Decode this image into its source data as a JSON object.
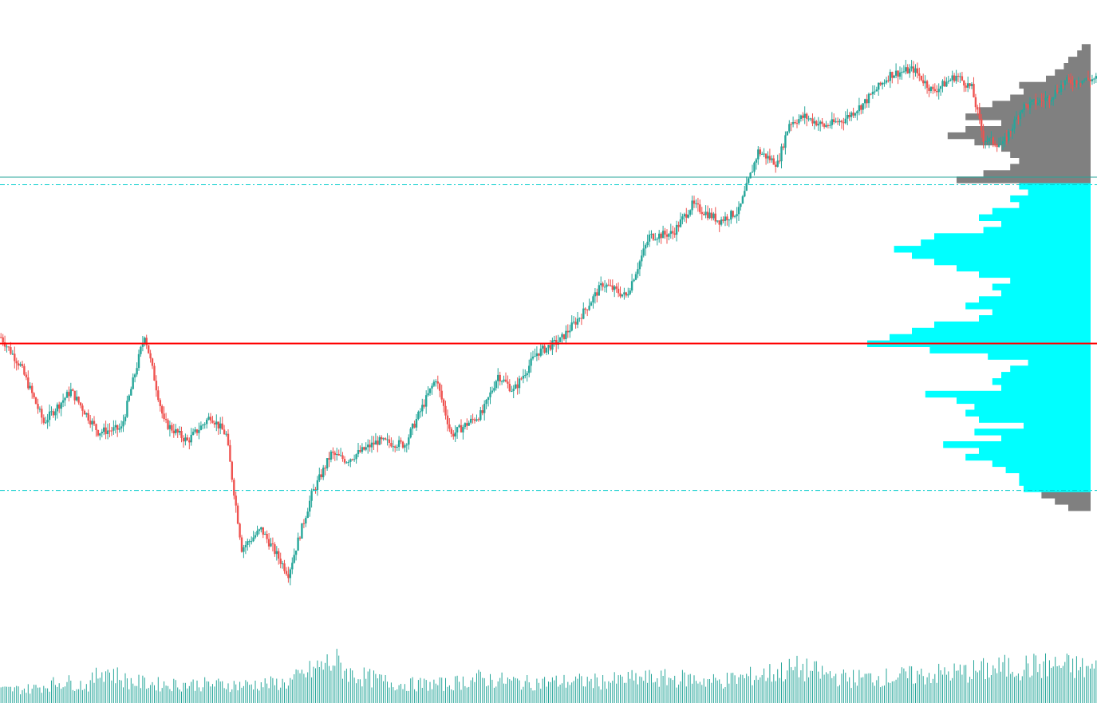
{
  "chart_data": {
    "type": "candlestick",
    "title": "",
    "xlabel": "",
    "ylabel": "",
    "ylim": [
      0,
      1000
    ],
    "grid": false,
    "legend": "none",
    "colors": {
      "up": "#26a69a",
      "down": "#ef5350",
      "value_area": "#00ffff",
      "profile_outside": "#808080",
      "poc_line": "#ff0000",
      "level_line": "#26a69a",
      "value_area_lines": "#00cccc",
      "volume": "#26a69a"
    },
    "waypoints": [
      [
        0,
        465
      ],
      [
        10,
        420
      ],
      [
        22,
        330
      ],
      [
        36,
        380
      ],
      [
        50,
        315
      ],
      [
        62,
        320
      ],
      [
        74,
        470
      ],
      [
        84,
        330
      ],
      [
        96,
        300
      ],
      [
        108,
        340
      ],
      [
        116,
        310
      ],
      [
        124,
        130
      ],
      [
        134,
        160
      ],
      [
        148,
        90
      ],
      [
        160,
        215
      ],
      [
        170,
        280
      ],
      [
        178,
        270
      ],
      [
        194,
        300
      ],
      [
        208,
        295
      ],
      [
        224,
        400
      ],
      [
        232,
        310
      ],
      [
        248,
        345
      ],
      [
        256,
        405
      ],
      [
        264,
        380
      ],
      [
        276,
        440
      ],
      [
        288,
        460
      ],
      [
        300,
        505
      ],
      [
        310,
        550
      ],
      [
        322,
        530
      ],
      [
        334,
        625
      ],
      [
        346,
        630
      ],
      [
        356,
        675
      ],
      [
        370,
        650
      ],
      [
        380,
        665
      ],
      [
        390,
        760
      ],
      [
        400,
        740
      ],
      [
        406,
        805
      ],
      [
        414,
        815
      ],
      [
        424,
        800
      ],
      [
        434,
        810
      ],
      [
        444,
        835
      ],
      [
        458,
        882
      ],
      [
        470,
        890
      ],
      [
        480,
        855
      ],
      [
        492,
        880
      ],
      [
        500,
        860
      ],
      [
        506,
        780
      ],
      [
        516,
        770
      ],
      [
        526,
        830
      ],
      [
        540,
        845
      ],
      [
        548,
        870
      ],
      [
        564,
        875
      ]
    ],
    "profile": {
      "poc": 455,
      "value_area_high": 707,
      "value_area_low": 222,
      "level": 719,
      "bins": [
        [
          195,
          5
        ],
        [
          205,
          8
        ],
        [
          215,
          11
        ],
        [
          225,
          15
        ],
        [
          235,
          16
        ],
        [
          245,
          16
        ],
        [
          255,
          19
        ],
        [
          265,
          22
        ],
        [
          275,
          28
        ],
        [
          285,
          25
        ],
        [
          295,
          33
        ],
        [
          305,
          20
        ],
        [
          315,
          26
        ],
        [
          325,
          15
        ],
        [
          335,
          25
        ],
        [
          345,
          28
        ],
        [
          355,
          26
        ],
        [
          365,
          30
        ],
        [
          375,
          37
        ],
        [
          385,
          20
        ],
        [
          395,
          22
        ],
        [
          405,
          20
        ],
        [
          415,
          18
        ],
        [
          425,
          14
        ],
        [
          435,
          23
        ],
        [
          445,
          36
        ],
        [
          455,
          50
        ],
        [
          465,
          45
        ],
        [
          475,
          40
        ],
        [
          485,
          35
        ],
        [
          495,
          25
        ],
        [
          505,
          22
        ],
        [
          515,
          28
        ],
        [
          525,
          25
        ],
        [
          535,
          20
        ],
        [
          545,
          22
        ],
        [
          555,
          18
        ],
        [
          565,
          25
        ],
        [
          575,
          30
        ],
        [
          585,
          35
        ],
        [
          595,
          40
        ],
        [
          605,
          44
        ],
        [
          615,
          38
        ],
        [
          625,
          35
        ],
        [
          635,
          24
        ],
        [
          645,
          20
        ],
        [
          655,
          25
        ],
        [
          665,
          22
        ],
        [
          675,
          16
        ],
        [
          685,
          18
        ],
        [
          695,
          14
        ],
        [
          705,
          16
        ],
        [
          715,
          30
        ],
        [
          725,
          24
        ],
        [
          735,
          18
        ],
        [
          745,
          16
        ],
        [
          755,
          18
        ],
        [
          765,
          20
        ],
        [
          775,
          26
        ],
        [
          785,
          32
        ],
        [
          795,
          28
        ],
        [
          805,
          20
        ],
        [
          815,
          28
        ],
        [
          825,
          25
        ],
        [
          835,
          22
        ],
        [
          845,
          18
        ],
        [
          855,
          15
        ],
        [
          865,
          16
        ],
        [
          875,
          10
        ],
        [
          885,
          8
        ],
        [
          895,
          6
        ],
        [
          905,
          5
        ],
        [
          915,
          3
        ],
        [
          925,
          2
        ]
      ]
    },
    "volume_baseline": [
      [
        0,
        18
      ],
      [
        40,
        20
      ],
      [
        80,
        30
      ],
      [
        110,
        24
      ],
      [
        130,
        48
      ],
      [
        140,
        42
      ],
      [
        160,
        30
      ],
      [
        200,
        26
      ],
      [
        260,
        26
      ],
      [
        300,
        25
      ],
      [
        360,
        28
      ],
      [
        400,
        50
      ],
      [
        420,
        58
      ],
      [
        440,
        40
      ],
      [
        500,
        26
      ],
      [
        560,
        26
      ],
      [
        600,
        34
      ],
      [
        660,
        28
      ],
      [
        720,
        30
      ],
      [
        760,
        30
      ],
      [
        800,
        34
      ],
      [
        860,
        34
      ],
      [
        900,
        30
      ],
      [
        960,
        40
      ],
      [
        1000,
        48
      ],
      [
        1060,
        34
      ],
      [
        1120,
        36
      ],
      [
        1200,
        42
      ],
      [
        1270,
        50
      ],
      [
        1330,
        52
      ],
      [
        1375,
        46
      ]
    ]
  }
}
